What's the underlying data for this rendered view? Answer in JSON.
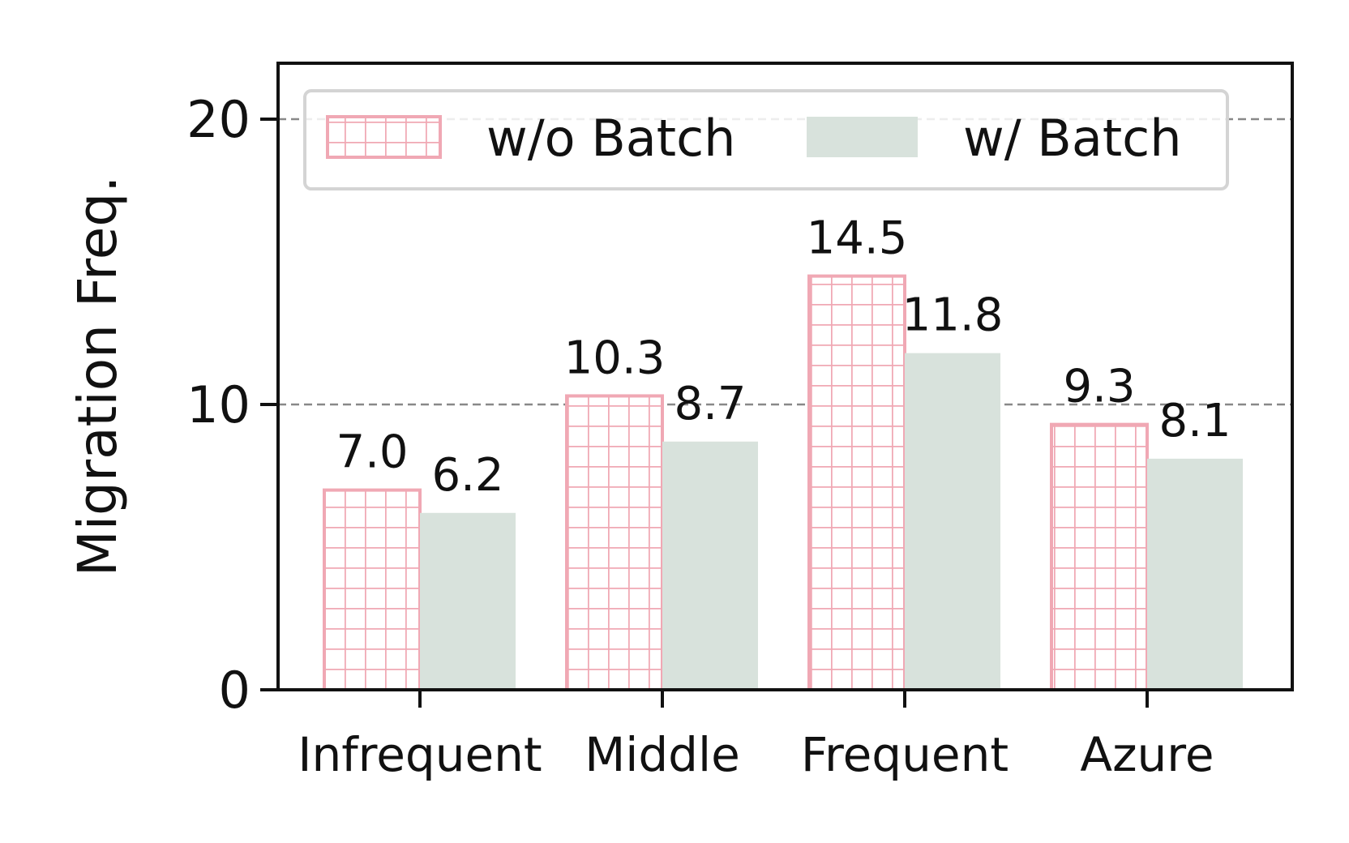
{
  "chart_data": {
    "type": "bar",
    "title": "",
    "xlabel": "",
    "ylabel": "Migration Freq.",
    "categories": [
      "Infrequent",
      "Middle",
      "Frequent",
      "Azure"
    ],
    "series": [
      {
        "name": "w/o Batch",
        "values": [
          7.0,
          10.3,
          14.5,
          9.3
        ],
        "labels": [
          "7.0",
          "10.3",
          "14.5",
          "9.3"
        ],
        "color": "#f0a8b4",
        "fill": "grid-hatch"
      },
      {
        "name": "w/ Batch",
        "values": [
          6.2,
          8.7,
          11.8,
          8.1
        ],
        "labels": [
          "6.2",
          "8.7",
          "11.8",
          "8.1"
        ],
        "color": "#d8e2dc",
        "fill": "solid"
      }
    ],
    "ylim": [
      0,
      22
    ],
    "yticks": [
      0,
      10,
      20
    ],
    "ytick_labels": [
      "0",
      "10",
      "20"
    ],
    "grid": "horizontal dashed at y ticks",
    "legend_position": "top"
  }
}
